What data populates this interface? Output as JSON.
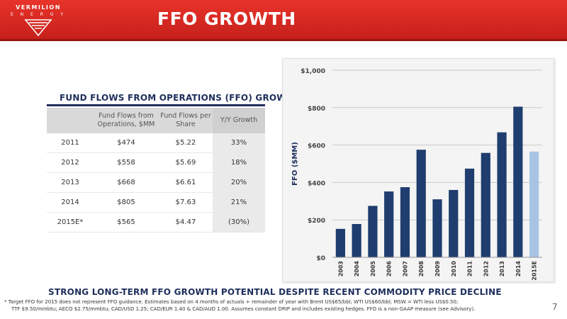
{
  "logo": {
    "name": "VERMILION",
    "sub": "E N E R G Y"
  },
  "page_title": "FFO GROWTH",
  "table": {
    "title": "FUND FLOWS FROM OPERATIONS (FFO) GROWTH",
    "headers": [
      "",
      "Fund Flows from Operations, $MM",
      "Fund Flows per Share",
      "Y/Y  Growth"
    ],
    "rows": [
      [
        "2011",
        "$474",
        "$5.22",
        "33%"
      ],
      [
        "2012",
        "$558",
        "$5.69",
        "18%"
      ],
      [
        "2013",
        "$668",
        "$6.61",
        "20%"
      ],
      [
        "2014",
        "$805",
        "$7.63",
        "21%"
      ],
      [
        "2015E*",
        "$565",
        "$4.47",
        "(30%)"
      ]
    ]
  },
  "chart_data": {
    "type": "bar",
    "categories": [
      "2003",
      "2004",
      "2005",
      "2006",
      "2007",
      "2008",
      "2009",
      "2010",
      "2011",
      "2012",
      "2013",
      "2014",
      "2015E"
    ],
    "values": [
      152,
      178,
      275,
      352,
      375,
      575,
      310,
      360,
      474,
      558,
      668,
      805,
      565
    ],
    "ylabel": "FFO ($MM)",
    "ylim": [
      0,
      1000
    ],
    "yticks": [
      0,
      200,
      400,
      600,
      800,
      1000
    ],
    "ytick_labels": [
      "$0",
      "$200",
      "$400",
      "$600",
      "$800",
      "$1,000"
    ],
    "grid": true,
    "colors": {
      "bar": "#1f3d6e",
      "estimate_bar": "#a9c4e2"
    }
  },
  "subtitle": "STRONG LONG-TERM FFO GROWTH POTENTIAL DESPITE RECENT COMMODITY PRICE DECLINE",
  "footnote": {
    "line1": "*  Target FFO for 2015 does not represent FFO guidance.  Estimates based on 4 months of actuals + remainder of year with Brent US$65/bbl; WTI US$60/bbl; MSW = WTI less US$0.50;",
    "line2": "TTF $9.50/mmbtu; AECO $2.75/mmbtu; CAD/USD 1.25; CAD/EUR 1.40 & CAD/AUD 1.00.  Assumes constant DRIP and includes existing hedges. FFO is a non-GAAP measure (see Advisory)."
  },
  "page_number": "7",
  "colors": {
    "header": "#d42a23",
    "navy": "#1e2f5c"
  }
}
